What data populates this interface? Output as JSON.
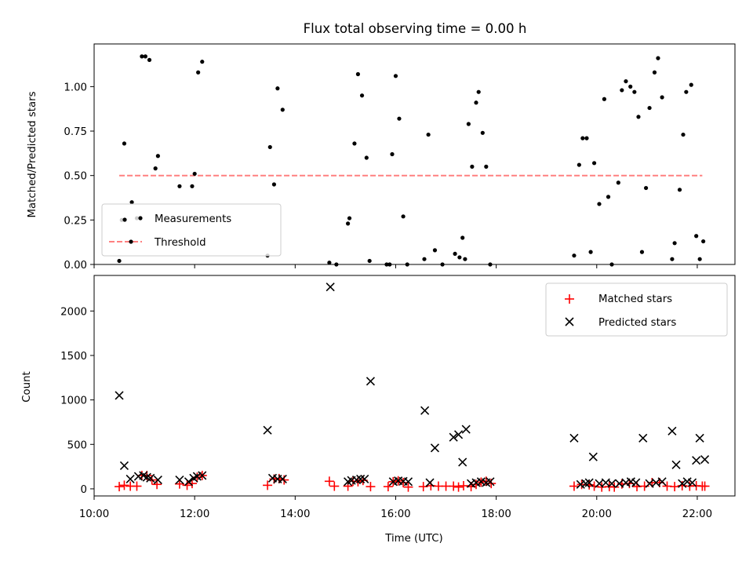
{
  "chart_data": [
    {
      "type": "scatter",
      "title": "Flux total observing time = 0.00 h",
      "xlabel": "",
      "ylabel": "Matched/Predicted stars",
      "xlim": [
        10.0,
        22.75
      ],
      "ylim": [
        0.0,
        1.24
      ],
      "yticks": [
        0.0,
        0.25,
        0.5,
        0.75,
        1.0
      ],
      "ytick_labels": [
        "0.00",
        "0.25",
        "0.50",
        "0.75",
        "1.00"
      ],
      "legend_position": "lower-left",
      "series": [
        {
          "name": "Measurements",
          "color": "#000000",
          "marker": "dot",
          "x": [
            10.5,
            10.55,
            10.6,
            10.75,
            10.85,
            10.95,
            11.02,
            11.1,
            11.22,
            11.27,
            11.7,
            11.95,
            12.0,
            12.07,
            12.15,
            13.45,
            13.5,
            13.58,
            13.65,
            13.75,
            14.68,
            14.82,
            15.05,
            15.08,
            15.18,
            15.25,
            15.33,
            15.42,
            15.48,
            15.82,
            15.88,
            15.93,
            16.0,
            16.07,
            16.15,
            16.23,
            16.57,
            16.65,
            16.78,
            16.93,
            17.18,
            17.27,
            17.33,
            17.38,
            17.45,
            17.52,
            17.6,
            17.65,
            17.73,
            17.8,
            17.88,
            19.55,
            19.65,
            19.72,
            19.8,
            19.88,
            19.95,
            20.05,
            20.15,
            20.23,
            20.3,
            20.43,
            20.5,
            20.58,
            20.67,
            20.75,
            20.83,
            20.9,
            20.98,
            21.05,
            21.15,
            21.22,
            21.3,
            21.5,
            21.55,
            21.65,
            21.72,
            21.78,
            21.88,
            21.98,
            22.05,
            22.12
          ],
          "y": [
            0.02,
            0.25,
            0.68,
            0.35,
            0.26,
            1.17,
            1.17,
            1.15,
            0.54,
            0.61,
            0.44,
            0.44,
            0.51,
            1.08,
            1.14,
            0.05,
            0.66,
            0.45,
            0.99,
            0.87,
            0.01,
            0.0,
            0.23,
            0.26,
            0.68,
            1.07,
            0.95,
            0.6,
            0.02,
            0.0,
            0.0,
            0.62,
            1.06,
            0.82,
            0.27,
            0.0,
            0.03,
            0.73,
            0.08,
            0.0,
            0.06,
            0.04,
            0.15,
            0.03,
            0.79,
            0.55,
            0.91,
            0.97,
            0.74,
            0.55,
            0.0,
            0.05,
            0.56,
            0.71,
            0.71,
            0.07,
            0.57,
            0.34,
            0.93,
            0.38,
            0.0,
            0.46,
            0.98,
            1.03,
            1.0,
            0.97,
            0.83,
            0.07,
            0.43,
            0.88,
            1.08,
            1.16,
            0.94,
            0.03,
            0.12,
            0.42,
            0.73,
            0.97,
            1.01,
            0.16,
            0.03,
            0.13
          ]
        },
        {
          "name": "Threshold",
          "color": "#ff8080",
          "style": "dashed",
          "x": [
            10.5,
            22.1
          ],
          "y": [
            0.5,
            0.5
          ]
        }
      ]
    },
    {
      "type": "scatter",
      "title": "",
      "xlabel": "Time (UTC)",
      "ylabel": "Count",
      "xlim": [
        10.0,
        22.75
      ],
      "ylim": [
        -80,
        2400
      ],
      "xticks": [
        10,
        12,
        14,
        16,
        18,
        20,
        22
      ],
      "xtick_labels": [
        "10:00",
        "12:00",
        "14:00",
        "16:00",
        "18:00",
        "20:00",
        "22:00"
      ],
      "yticks": [
        0,
        500,
        1000,
        1500,
        2000
      ],
      "ytick_labels": [
        "0",
        "500",
        "1000",
        "1500",
        "2000"
      ],
      "legend_position": "top-right",
      "series": [
        {
          "name": "Matched stars",
          "color": "#ff0000",
          "marker": "plus",
          "x": [
            10.5,
            10.6,
            10.72,
            10.85,
            10.95,
            11.05,
            11.15,
            11.25,
            11.7,
            11.85,
            11.95,
            12.05,
            12.15,
            13.45,
            13.58,
            13.68,
            13.78,
            14.68,
            14.78,
            15.05,
            15.15,
            15.25,
            15.35,
            15.5,
            15.85,
            15.95,
            16.05,
            16.15,
            16.25,
            16.55,
            16.7,
            16.85,
            17.0,
            17.15,
            17.25,
            17.35,
            17.5,
            17.6,
            17.7,
            17.8,
            17.9,
            19.55,
            19.7,
            19.85,
            19.95,
            20.1,
            20.25,
            20.35,
            20.5,
            20.65,
            20.8,
            20.95,
            21.1,
            21.25,
            21.4,
            21.55,
            21.7,
            21.85,
            21.98,
            22.1,
            22.15
          ],
          "y": [
            25,
            40,
            30,
            30,
            150,
            150,
            100,
            50,
            55,
            40,
            60,
            130,
            150,
            40,
            110,
            115,
            100,
            85,
            30,
            30,
            85,
            80,
            95,
            25,
            25,
            80,
            90,
            70,
            20,
            25,
            35,
            30,
            30,
            30,
            20,
            35,
            25,
            50,
            75,
            85,
            60,
            30,
            50,
            45,
            30,
            20,
            25,
            20,
            55,
            60,
            25,
            30,
            70,
            70,
            30,
            25,
            35,
            30,
            35,
            30,
            30
          ]
        },
        {
          "name": "Predicted stars",
          "color": "#000000",
          "marker": "x",
          "x": [
            10.5,
            10.6,
            10.72,
            10.88,
            10.98,
            11.05,
            11.12,
            11.27,
            11.7,
            11.88,
            11.98,
            12.05,
            12.15,
            13.45,
            13.55,
            13.65,
            13.75,
            14.7,
            15.05,
            15.12,
            15.22,
            15.3,
            15.38,
            15.5,
            15.95,
            16.05,
            16.15,
            16.25,
            16.58,
            16.68,
            16.78,
            17.15,
            17.25,
            17.33,
            17.4,
            17.5,
            17.6,
            17.7,
            17.8,
            17.88,
            19.55,
            19.68,
            19.78,
            19.85,
            19.93,
            20.05,
            20.18,
            20.3,
            20.45,
            20.58,
            20.68,
            20.78,
            20.92,
            21.05,
            21.18,
            21.3,
            21.5,
            21.58,
            21.7,
            21.8,
            21.9,
            21.98,
            22.05,
            22.15
          ],
          "y": [
            1050,
            260,
            110,
            140,
            150,
            130,
            120,
            100,
            100,
            80,
            120,
            140,
            150,
            660,
            120,
            110,
            110,
            2270,
            80,
            95,
            100,
            110,
            110,
            1210,
            80,
            90,
            85,
            80,
            880,
            70,
            460,
            580,
            610,
            300,
            670,
            60,
            70,
            80,
            70,
            80,
            570,
            50,
            60,
            70,
            360,
            60,
            70,
            60,
            60,
            70,
            80,
            70,
            570,
            60,
            70,
            80,
            650,
            270,
            60,
            80,
            70,
            320,
            570,
            330
          ]
        }
      ]
    }
  ]
}
